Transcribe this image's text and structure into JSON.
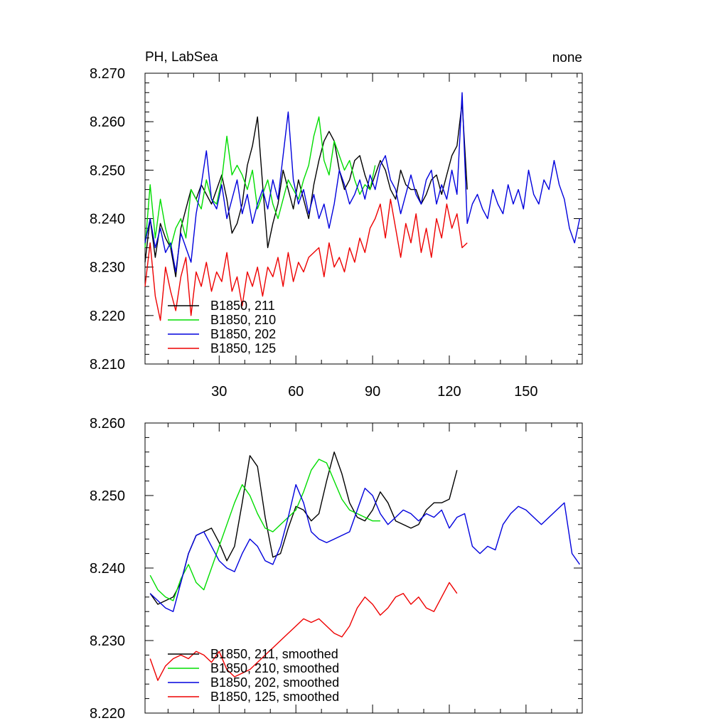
{
  "chart_data": [
    {
      "type": "line",
      "title_left": "PH, LabSea",
      "title_right": "none",
      "xlabel": "",
      "ylabel": "",
      "xlim": [
        1,
        172
      ],
      "ylim": [
        8.21,
        8.27
      ],
      "y_ticks": [
        8.21,
        8.22,
        8.23,
        8.24,
        8.25,
        8.26,
        8.27
      ],
      "y_tick_labels": [
        "8.210",
        "8.220",
        "8.230",
        "8.240",
        "8.250",
        "8.260",
        "8.270"
      ],
      "x_ticks": [
        30,
        60,
        90,
        120,
        150
      ],
      "x_tick_labels": [
        "30",
        "60",
        "90",
        "120",
        "150"
      ],
      "grid": false,
      "legend_position": "bottom-left",
      "series": [
        {
          "name": "B1850, 211",
          "color": "#000000",
          "x": [
            1,
            3,
            5,
            7,
            9,
            11,
            13,
            15,
            17,
            19,
            21,
            23,
            25,
            27,
            29,
            31,
            33,
            35,
            37,
            39,
            41,
            43,
            45,
            47,
            49,
            51,
            53,
            55,
            57,
            59,
            61,
            63,
            65,
            67,
            69,
            71,
            73,
            75,
            77,
            79,
            81,
            83,
            85,
            87,
            89,
            91,
            93,
            95,
            97,
            99,
            101,
            103,
            105,
            107,
            109,
            111,
            113,
            115,
            117,
            119,
            121,
            123,
            125,
            127
          ],
          "values": [
            8.231,
            8.24,
            8.232,
            8.239,
            8.236,
            8.234,
            8.228,
            8.238,
            8.242,
            8.246,
            8.244,
            8.247,
            8.245,
            8.243,
            8.246,
            8.249,
            8.244,
            8.237,
            8.239,
            8.243,
            8.251,
            8.255,
            8.261,
            8.247,
            8.234,
            8.239,
            8.243,
            8.25,
            8.246,
            8.242,
            8.248,
            8.244,
            8.24,
            8.247,
            8.252,
            8.256,
            8.258,
            8.256,
            8.25,
            8.246,
            8.248,
            8.252,
            8.253,
            8.249,
            8.246,
            8.249,
            8.252,
            8.25,
            8.246,
            8.244,
            8.25,
            8.247,
            8.246,
            8.246,
            8.243,
            8.245,
            8.248,
            8.249,
            8.245,
            8.249,
            8.253,
            8.255,
            8.264,
            8.246
          ]
        },
        {
          "name": "B1850, 210",
          "color": "#00dd00",
          "x": [
            1,
            3,
            5,
            7,
            9,
            11,
            13,
            15,
            17,
            19,
            21,
            23,
            25,
            27,
            29,
            31,
            33,
            35,
            37,
            39,
            41,
            43,
            45,
            47,
            49,
            51,
            53,
            55,
            57,
            59,
            61,
            63,
            65,
            67,
            69,
            71,
            73,
            75,
            77,
            79,
            81,
            83,
            85,
            87,
            89,
            91
          ],
          "values": [
            8.234,
            8.247,
            8.236,
            8.244,
            8.238,
            8.234,
            8.238,
            8.24,
            8.236,
            8.246,
            8.244,
            8.242,
            8.248,
            8.244,
            8.243,
            8.248,
            8.257,
            8.249,
            8.251,
            8.249,
            8.246,
            8.25,
            8.242,
            8.245,
            8.248,
            8.243,
            8.24,
            8.244,
            8.248,
            8.246,
            8.244,
            8.248,
            8.251,
            8.257,
            8.261,
            8.252,
            8.249,
            8.256,
            8.253,
            8.25,
            8.252,
            8.248,
            8.245,
            8.247,
            8.246,
            8.251
          ]
        },
        {
          "name": "B1850, 202",
          "color": "#0000dd",
          "x": [
            1,
            3,
            5,
            7,
            9,
            11,
            13,
            15,
            17,
            19,
            21,
            23,
            25,
            27,
            29,
            31,
            33,
            35,
            37,
            39,
            41,
            43,
            45,
            47,
            49,
            51,
            53,
            55,
            57,
            59,
            61,
            63,
            65,
            67,
            69,
            71,
            73,
            75,
            77,
            79,
            81,
            83,
            85,
            87,
            89,
            91,
            93,
            95,
            97,
            99,
            101,
            103,
            105,
            107,
            109,
            111,
            113,
            115,
            117,
            119,
            121,
            123,
            125,
            127,
            129,
            131,
            133,
            135,
            137,
            139,
            141,
            143,
            145,
            147,
            149,
            151,
            153,
            155,
            157,
            159,
            161,
            163,
            165,
            167,
            169,
            171
          ],
          "values": [
            8.235,
            8.24,
            8.234,
            8.238,
            8.233,
            8.235,
            8.229,
            8.237,
            8.234,
            8.231,
            8.241,
            8.247,
            8.254,
            8.244,
            8.242,
            8.247,
            8.24,
            8.244,
            8.248,
            8.241,
            8.245,
            8.239,
            8.243,
            8.246,
            8.242,
            8.248,
            8.244,
            8.253,
            8.262,
            8.248,
            8.243,
            8.246,
            8.241,
            8.245,
            8.24,
            8.243,
            8.238,
            8.243,
            8.25,
            8.247,
            8.243,
            8.245,
            8.248,
            8.244,
            8.249,
            8.246,
            8.251,
            8.253,
            8.248,
            8.246,
            8.241,
            8.245,
            8.249,
            8.245,
            8.243,
            8.248,
            8.25,
            8.243,
            8.247,
            8.244,
            8.25,
            8.245,
            8.266,
            8.239,
            8.243,
            8.245,
            8.242,
            8.24,
            8.246,
            8.243,
            8.241,
            8.247,
            8.243,
            8.246,
            8.242,
            8.25,
            8.245,
            8.243,
            8.248,
            8.246,
            8.252,
            8.247,
            8.244,
            8.238,
            8.235,
            8.24
          ]
        },
        {
          "name": "B1850, 125",
          "color": "#ee0000",
          "x": [
            1,
            3,
            5,
            7,
            9,
            11,
            13,
            15,
            17,
            19,
            21,
            23,
            25,
            27,
            29,
            31,
            33,
            35,
            37,
            39,
            41,
            43,
            45,
            47,
            49,
            51,
            53,
            55,
            57,
            59,
            61,
            63,
            65,
            67,
            69,
            71,
            73,
            75,
            77,
            79,
            81,
            83,
            85,
            87,
            89,
            91,
            93,
            95,
            97,
            99,
            101,
            103,
            105,
            107,
            109,
            111,
            113,
            115,
            117,
            119,
            121,
            123,
            125,
            127
          ],
          "values": [
            8.226,
            8.235,
            8.224,
            8.219,
            8.23,
            8.225,
            8.221,
            8.228,
            8.232,
            8.22,
            8.229,
            8.226,
            8.231,
            8.225,
            8.229,
            8.227,
            8.233,
            8.225,
            8.228,
            8.222,
            8.229,
            8.226,
            8.23,
            8.224,
            8.23,
            8.228,
            8.232,
            8.226,
            8.233,
            8.227,
            8.231,
            8.229,
            8.232,
            8.233,
            8.234,
            8.228,
            8.235,
            8.23,
            8.232,
            8.229,
            8.234,
            8.231,
            8.236,
            8.233,
            8.238,
            8.24,
            8.243,
            8.236,
            8.244,
            8.238,
            8.232,
            8.239,
            8.235,
            8.241,
            8.233,
            8.238,
            8.232,
            8.24,
            8.236,
            8.243,
            8.238,
            8.241,
            8.234,
            8.235
          ]
        }
      ]
    },
    {
      "type": "line",
      "title_left": "",
      "title_right": "",
      "xlabel": "",
      "ylabel": "",
      "xlim": [
        1,
        172
      ],
      "ylim": [
        8.22,
        8.26
      ],
      "y_ticks": [
        8.22,
        8.23,
        8.24,
        8.25,
        8.26
      ],
      "y_tick_labels": [
        "8.220",
        "8.230",
        "8.240",
        "8.250",
        "8.260"
      ],
      "x_ticks": [
        30,
        60,
        90,
        120,
        150
      ],
      "x_tick_labels": [],
      "grid": false,
      "legend_position": "bottom-left",
      "series": [
        {
          "name": "B1850, 211, smoothed",
          "color": "#000000",
          "x": [
            3,
            6,
            9,
            12,
            15,
            18,
            21,
            24,
            27,
            30,
            33,
            36,
            39,
            42,
            45,
            48,
            51,
            54,
            57,
            60,
            63,
            66,
            69,
            72,
            75,
            78,
            81,
            84,
            87,
            90,
            93,
            96,
            99,
            102,
            105,
            108,
            111,
            114,
            117,
            120,
            123
          ],
          "values": [
            8.2365,
            8.235,
            8.2355,
            8.236,
            8.238,
            8.242,
            8.2445,
            8.245,
            8.2455,
            8.2435,
            8.241,
            8.243,
            8.249,
            8.2555,
            8.254,
            8.247,
            8.2415,
            8.242,
            8.2455,
            8.2485,
            8.248,
            8.2465,
            8.2475,
            8.252,
            8.256,
            8.253,
            8.249,
            8.247,
            8.2465,
            8.248,
            8.2505,
            8.249,
            8.2465,
            8.246,
            8.2455,
            8.246,
            8.248,
            8.249,
            8.249,
            8.2495,
            8.2535
          ]
        },
        {
          "name": "B1850, 210, smoothed",
          "color": "#00dd00",
          "x": [
            3,
            6,
            9,
            12,
            15,
            18,
            21,
            24,
            27,
            30,
            33,
            36,
            39,
            42,
            45,
            48,
            51,
            54,
            57,
            60,
            63,
            66,
            69,
            72,
            75,
            78,
            81,
            84,
            87,
            90,
            93
          ],
          "values": [
            8.239,
            8.237,
            8.236,
            8.2355,
            8.2385,
            8.2405,
            8.238,
            8.237,
            8.24,
            8.243,
            8.246,
            8.249,
            8.2515,
            8.25,
            8.2475,
            8.2455,
            8.245,
            8.246,
            8.247,
            8.248,
            8.2505,
            8.2535,
            8.255,
            8.2545,
            8.252,
            8.2495,
            8.248,
            8.2475,
            8.247,
            8.2465,
            8.2465
          ]
        },
        {
          "name": "B1850, 202, smoothed",
          "color": "#0000dd",
          "x": [
            3,
            6,
            9,
            12,
            15,
            18,
            21,
            24,
            27,
            30,
            33,
            36,
            39,
            42,
            45,
            48,
            51,
            54,
            57,
            60,
            63,
            66,
            69,
            72,
            75,
            78,
            81,
            84,
            87,
            90,
            93,
            96,
            99,
            102,
            105,
            108,
            111,
            114,
            117,
            120,
            123,
            126,
            129,
            132,
            135,
            138,
            141,
            144,
            147,
            150,
            153,
            156,
            159,
            162,
            165,
            168,
            171
          ],
          "values": [
            8.2365,
            8.2355,
            8.2345,
            8.234,
            8.238,
            8.242,
            8.2445,
            8.245,
            8.243,
            8.241,
            8.24,
            8.2395,
            8.242,
            8.244,
            8.243,
            8.241,
            8.2405,
            8.243,
            8.247,
            8.2515,
            8.249,
            8.245,
            8.244,
            8.2435,
            8.244,
            8.2445,
            8.245,
            8.248,
            8.251,
            8.25,
            8.2475,
            8.246,
            8.247,
            8.248,
            8.2475,
            8.2465,
            8.2475,
            8.247,
            8.248,
            8.2455,
            8.247,
            8.2475,
            8.243,
            8.242,
            8.243,
            8.2425,
            8.246,
            8.2475,
            8.2485,
            8.248,
            8.247,
            8.246,
            8.247,
            8.248,
            8.249,
            8.242,
            8.2405
          ]
        },
        {
          "name": "B1850, 125, smoothed",
          "color": "#ee0000",
          "x": [
            3,
            6,
            9,
            12,
            15,
            18,
            21,
            24,
            27,
            30,
            33,
            36,
            39,
            42,
            45,
            48,
            51,
            54,
            57,
            60,
            63,
            66,
            69,
            72,
            75,
            78,
            81,
            84,
            87,
            90,
            93,
            96,
            99,
            102,
            105,
            108,
            111,
            114,
            117,
            120,
            123
          ],
          "values": [
            8.2275,
            8.2245,
            8.2265,
            8.2275,
            8.228,
            8.2275,
            8.2285,
            8.228,
            8.227,
            8.2285,
            8.226,
            8.225,
            8.2255,
            8.226,
            8.227,
            8.228,
            8.229,
            8.23,
            8.231,
            8.232,
            8.233,
            8.2325,
            8.233,
            8.232,
            8.231,
            8.2305,
            8.232,
            8.2345,
            8.236,
            8.235,
            8.2335,
            8.2345,
            8.236,
            8.2365,
            8.235,
            8.236,
            8.2345,
            8.234,
            8.236,
            8.238,
            8.2365
          ]
        }
      ]
    }
  ]
}
